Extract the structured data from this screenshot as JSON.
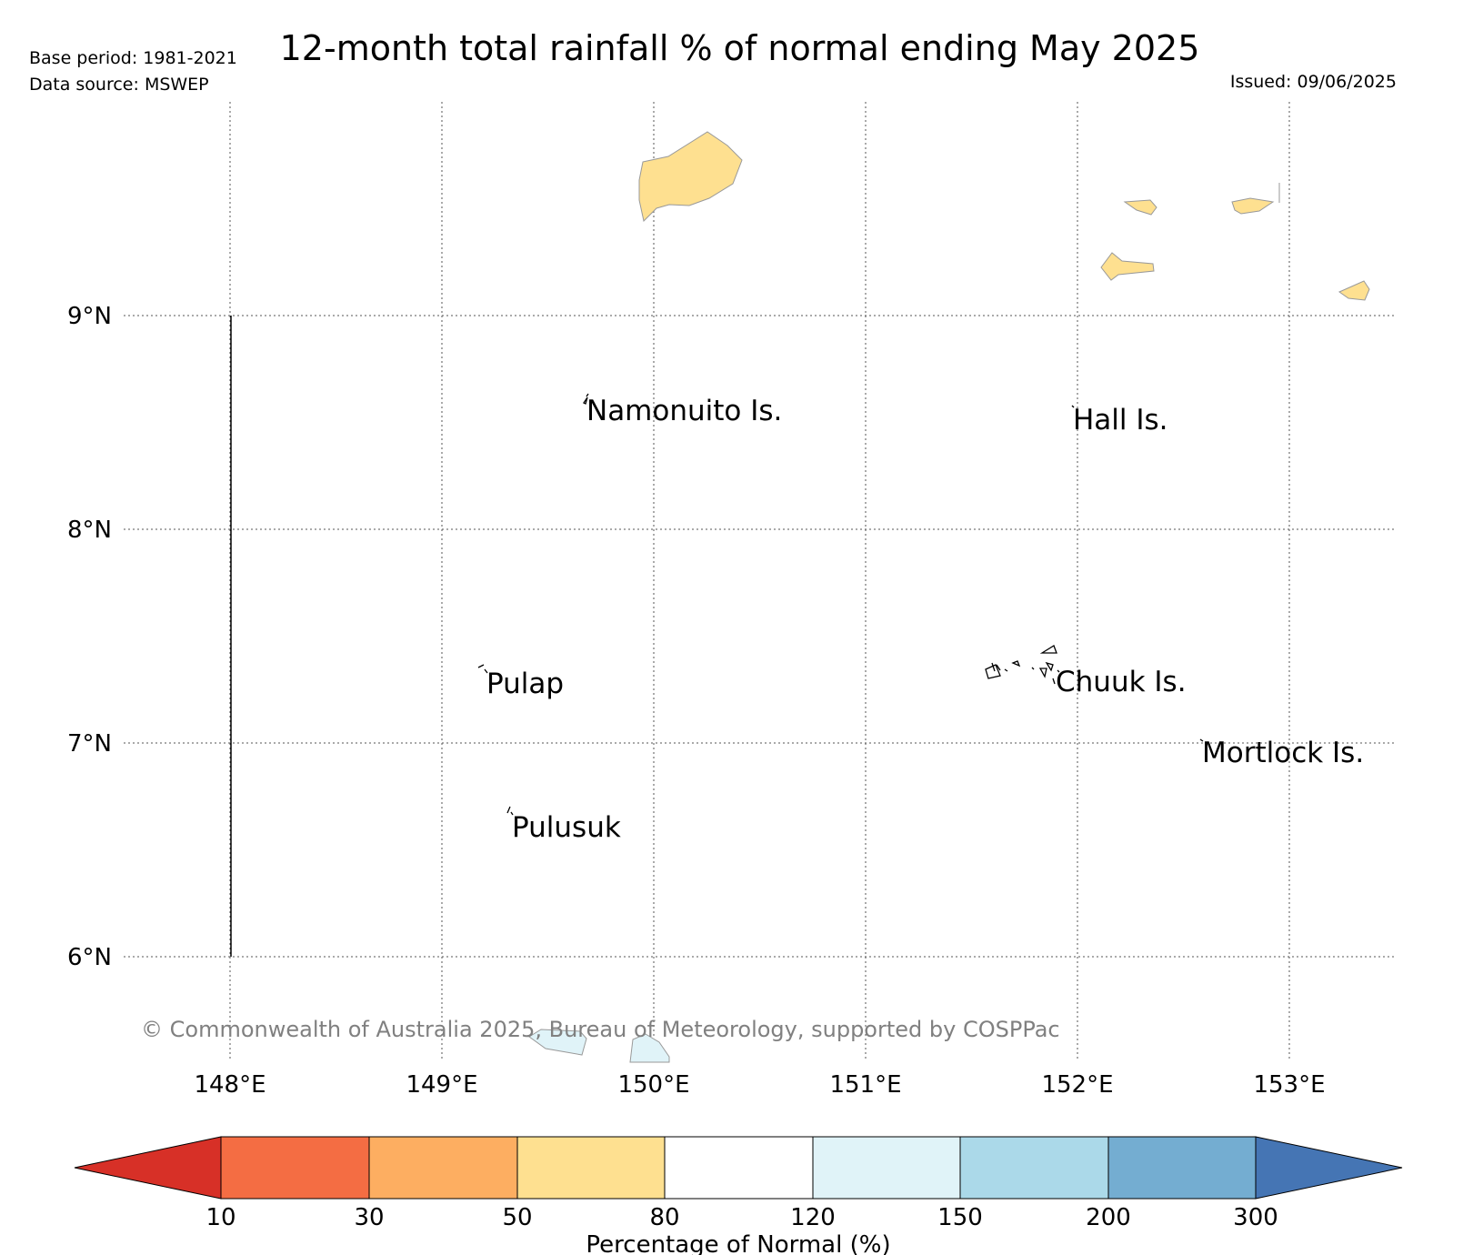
{
  "header": {
    "base_period": "Base period: 1981-2021",
    "data_source": "Data source: MSWEP",
    "title": "12-month total rainfall % of normal ending May 2025",
    "issued": "Issued: 09/06/2025"
  },
  "map": {
    "latitude_labels": [
      "9°N",
      "8°N",
      "7°N",
      "6°N"
    ],
    "longitude_labels": [
      "148°E",
      "149°E",
      "150°E",
      "151°E",
      "152°E",
      "153°E"
    ],
    "place_labels": [
      "Namonuito Is.",
      "Hall Is.",
      "Pulap",
      "Chuuk Is.",
      "Mortlock Is.",
      "Pulusuk"
    ],
    "copyright": "© Commonwealth of Australia 2025, Bureau of Meteorology, supported by COSPPac",
    "gridlines": "dotted"
  },
  "colorbar": {
    "ticks": [
      "10",
      "30",
      "50",
      "80",
      "120",
      "150",
      "200",
      "300"
    ],
    "label": "Percentage of Normal (%)",
    "colors": [
      "#d73027",
      "#f46d43",
      "#fdae61",
      "#fee090",
      "#ffffff",
      "#e0f3f8",
      "#abd9e9",
      "#74add1",
      "#4575b4"
    ]
  }
}
